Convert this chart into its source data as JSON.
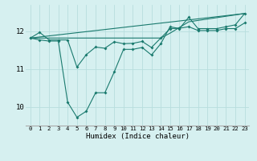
{
  "xlabel": "Humidex (Indice chaleur)",
  "bg_color": "#d6f0f0",
  "line_color": "#1a7a6e",
  "grid_color": "#b8dede",
  "xlim": [
    -0.5,
    23.5
  ],
  "ylim": [
    9.5,
    12.7
  ],
  "yticks": [
    10,
    11,
    12
  ],
  "xticks": [
    0,
    1,
    2,
    3,
    4,
    5,
    6,
    7,
    8,
    9,
    10,
    11,
    12,
    13,
    14,
    15,
    16,
    17,
    18,
    19,
    20,
    21,
    22,
    23
  ],
  "series1_x": [
    0,
    1,
    2,
    3,
    4,
    5,
    6,
    7,
    8,
    9,
    10,
    11,
    12,
    13,
    14,
    15,
    16,
    17,
    18,
    19,
    20,
    21,
    22,
    23
  ],
  "series1_y": [
    11.82,
    11.97,
    11.77,
    11.77,
    11.77,
    11.05,
    11.38,
    11.58,
    11.55,
    11.72,
    11.67,
    11.68,
    11.73,
    11.57,
    11.82,
    12.07,
    12.08,
    12.12,
    12.02,
    12.02,
    12.02,
    12.07,
    12.07,
    12.22
  ],
  "series2_x": [
    0,
    1,
    2,
    3,
    4,
    5,
    6,
    7,
    8,
    9,
    10,
    11,
    12,
    13,
    14,
    15,
    16,
    17,
    18,
    19,
    20,
    21,
    22,
    23
  ],
  "series2_y": [
    11.82,
    11.77,
    11.74,
    11.74,
    10.12,
    9.72,
    9.88,
    10.37,
    10.37,
    10.92,
    11.52,
    11.52,
    11.57,
    11.37,
    11.67,
    12.12,
    12.07,
    12.37,
    12.07,
    12.07,
    12.07,
    12.12,
    12.17,
    12.47
  ],
  "series3_x": [
    0,
    23
  ],
  "series3_y": [
    11.82,
    12.47
  ],
  "series4_x": [
    0,
    14,
    15,
    16,
    17,
    23
  ],
  "series4_y": [
    11.82,
    11.82,
    11.95,
    12.1,
    12.25,
    12.47
  ]
}
